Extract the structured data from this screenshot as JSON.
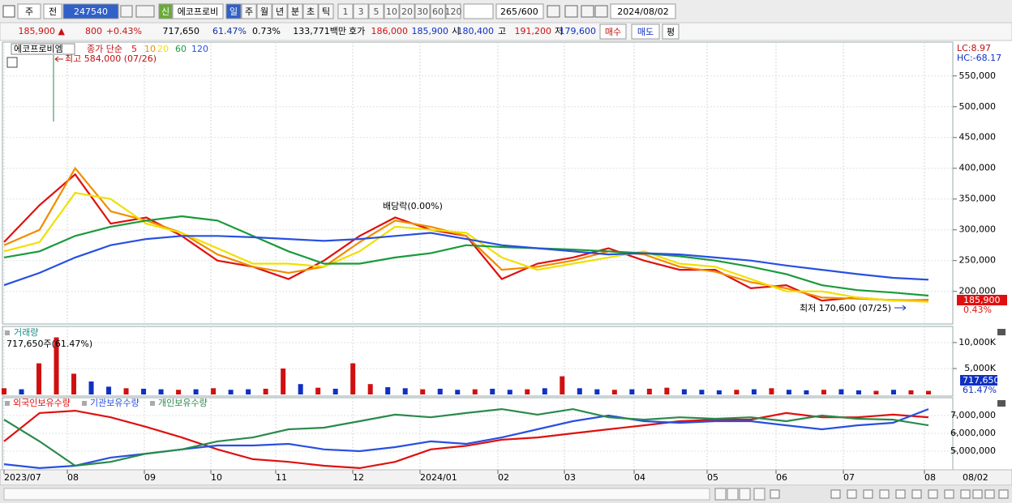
{
  "toolbar": {
    "period": "주",
    "prev": "전",
    "code": "247540",
    "credit": "신",
    "name": "에코프로비",
    "intervals": [
      "일",
      "주",
      "월",
      "년",
      "분",
      "초",
      "틱"
    ],
    "counts": [
      "1",
      "3",
      "5",
      "10",
      "20",
      "30",
      "60",
      "120"
    ],
    "shown": "265",
    "total": "/600",
    "date": "2024/08/02"
  },
  "quote": {
    "price": "185,900 ▲",
    "change": "800",
    "change_pct": "+0.43%",
    "volume": "717,650",
    "volume_ratio": "61.47%",
    "turnover": "0.73%",
    "amount": "133,771백만",
    "ask_label": "호가",
    "ask": "186,000",
    "bid": "185,900",
    "open_label": "시",
    "open": "180,400",
    "high_label": "고",
    "high": "191,200",
    "low_label": "저",
    "low": "179,600",
    "buy": "매수",
    "sell": "매도",
    "avg": "평"
  },
  "price_chart": {
    "type": "line",
    "stock": "에코프로비엠",
    "legend_label": "종가 단순",
    "series": [
      {
        "name": "5",
        "color": "#e01010",
        "values": [
          280000,
          340000,
          390000,
          310000,
          320000,
          290000,
          250000,
          240000,
          220000,
          250000,
          290000,
          320000,
          300000,
          290000,
          220000,
          245000,
          255000,
          270000,
          250000,
          235000,
          235000,
          205000,
          210000,
          185000,
          190000,
          185000,
          186000
        ]
      },
      {
        "name": "10",
        "color": "#f08c00",
        "values": [
          275000,
          300000,
          400000,
          330000,
          315000,
          295000,
          260000,
          240000,
          230000,
          240000,
          280000,
          315000,
          305000,
          290000,
          235000,
          240000,
          250000,
          265000,
          260000,
          240000,
          232000,
          215000,
          205000,
          190000,
          188000,
          186000,
          185000
        ]
      },
      {
        "name": "20",
        "color": "#f0e000",
        "values": [
          265000,
          280000,
          360000,
          350000,
          310000,
          295000,
          270000,
          245000,
          245000,
          240000,
          265000,
          305000,
          300000,
          295000,
          255000,
          235000,
          245000,
          255000,
          265000,
          245000,
          240000,
          220000,
          200000,
          200000,
          190000,
          185000,
          183000
        ]
      },
      {
        "name": "60",
        "color": "#1a9a3a",
        "values": [
          255000,
          265000,
          290000,
          305000,
          315000,
          322000,
          315000,
          290000,
          265000,
          245000,
          245000,
          255000,
          262000,
          275000,
          272000,
          270000,
          268000,
          265000,
          262000,
          257000,
          250000,
          240000,
          228000,
          210000,
          202000,
          198000,
          193000
        ]
      },
      {
        "name": "120",
        "color": "#2850e0",
        "values": [
          210000,
          230000,
          255000,
          275000,
          285000,
          290000,
          290000,
          288000,
          285000,
          282000,
          285000,
          290000,
          295000,
          285000,
          275000,
          270000,
          265000,
          260000,
          262000,
          260000,
          255000,
          250000,
          242000,
          235000,
          228000,
          222000,
          219000
        ]
      }
    ],
    "ylim": [
      147000,
      601000
    ],
    "yticks": [
      {
        "value": 200000,
        "label": "200,000"
      },
      {
        "value": 250000,
        "label": "250,000"
      },
      {
        "value": 300000,
        "label": "300,000"
      },
      {
        "value": 350000,
        "label": "350,000"
      },
      {
        "value": 400000,
        "label": "400,000"
      },
      {
        "value": 450000,
        "label": "450,000"
      },
      {
        "value": 500000,
        "label": "500,000"
      },
      {
        "value": 550000,
        "label": "550,000"
      }
    ],
    "annotations": {
      "high": "최고 584,000 (07/26)",
      "dividend": "배당락(0.00%)",
      "low": "최저 170,600 (07/25)"
    },
    "lc": "LC:8.97",
    "hc": "HC:-68.17",
    "last_price": "185,900",
    "last_change": "0.43%"
  },
  "volume_chart": {
    "type": "bar",
    "title": "거래량",
    "info": "717,650주(61.47%)",
    "values": [
      1200,
      1000,
      6000,
      11000,
      4000,
      2500,
      1500,
      1200,
      1100,
      1000,
      900,
      1000,
      1200,
      900,
      1000,
      1100,
      5000,
      2000,
      1300,
      1100,
      6000,
      2000,
      1400,
      1200,
      1000,
      1100,
      900,
      1000,
      1100,
      900,
      1000,
      1200,
      3500,
      1200,
      1000,
      900,
      1000,
      1100,
      1300,
      1000,
      900,
      800,
      900,
      1000,
      1200,
      900,
      800,
      900,
      1000,
      800,
      700,
      900,
      800,
      700
    ],
    "colors": [
      "#d01010",
      "#1030c0",
      "#d01010",
      "#d01010",
      "#d01010",
      "#1030c0",
      "#1030c0",
      "#d01010",
      "#1030c0",
      "#1030c0",
      "#d01010",
      "#1030c0",
      "#d01010",
      "#1030c0",
      "#1030c0",
      "#d01010",
      "#d01010",
      "#1030c0",
      "#d01010",
      "#1030c0",
      "#d01010",
      "#d01010",
      "#1030c0",
      "#1030c0",
      "#d01010",
      "#1030c0",
      "#1030c0",
      "#d01010",
      "#1030c0",
      "#1030c0",
      "#d01010",
      "#1030c0",
      "#d01010",
      "#1030c0",
      "#1030c0",
      "#d01010",
      "#1030c0",
      "#d01010",
      "#d01010",
      "#1030c0",
      "#1030c0",
      "#1030c0",
      "#d01010",
      "#1030c0",
      "#d01010",
      "#1030c0",
      "#1030c0",
      "#d01010",
      "#1030c0",
      "#1030c0",
      "#d01010",
      "#1030c0",
      "#d01010",
      "#d01010"
    ],
    "ylim": [
      0,
      12800
    ],
    "yticks": [
      {
        "value": 5000,
        "label": "5,000K"
      },
      {
        "value": 10000,
        "label": "10,000K"
      }
    ],
    "last_volume": "717,650",
    "last_ratio": "61.47%"
  },
  "holdings_chart": {
    "type": "line",
    "series": [
      {
        "name": "외국인보유수량",
        "color": "#e01010",
        "values": [
          5550000,
          7140000,
          7270000,
          6900000,
          6360000,
          5770000,
          5100000,
          4550000,
          4400000,
          4180000,
          4050000,
          4400000,
          5100000,
          5300000,
          5640000,
          5770000,
          6000000,
          6230000,
          6450000,
          6680000,
          6770000,
          6770000,
          7140000,
          6900000,
          6900000,
          7050000,
          6900000
        ]
      },
      {
        "name": "기관보유수량",
        "color": "#2850e0",
        "values": [
          4270000,
          4050000,
          4180000,
          4640000,
          4860000,
          5100000,
          5320000,
          5320000,
          5410000,
          5100000,
          5000000,
          5230000,
          5550000,
          5410000,
          5770000,
          6230000,
          6680000,
          7000000,
          6680000,
          6590000,
          6680000,
          6680000,
          6450000,
          6230000,
          6450000,
          6590000,
          7360000
        ]
      },
      {
        "name": "개인보유수량",
        "color": "#2a8a4a",
        "values": [
          6770000,
          5550000,
          4180000,
          4400000,
          4860000,
          5100000,
          5550000,
          5770000,
          6230000,
          6320000,
          6680000,
          7050000,
          6900000,
          7140000,
          7360000,
          7050000,
          7360000,
          6900000,
          6770000,
          6900000,
          6820000,
          6900000,
          6680000,
          7000000,
          6820000,
          6770000,
          6450000
        ]
      }
    ],
    "ylim": [
      3955000,
      7955000
    ],
    "yticks": [
      {
        "value": 5000000,
        "label": "5,000,000"
      },
      {
        "value": 6000000,
        "label": "6,000,000"
      },
      {
        "value": 7000000,
        "label": "7,000,000"
      }
    ]
  },
  "x_axis": {
    "labels": [
      "2023/07",
      "08",
      "09",
      "10",
      "11",
      "12",
      "2024/01",
      "02",
      "03",
      "04",
      "05",
      "06",
      "07",
      "08"
    ],
    "end_label": "08/02"
  }
}
